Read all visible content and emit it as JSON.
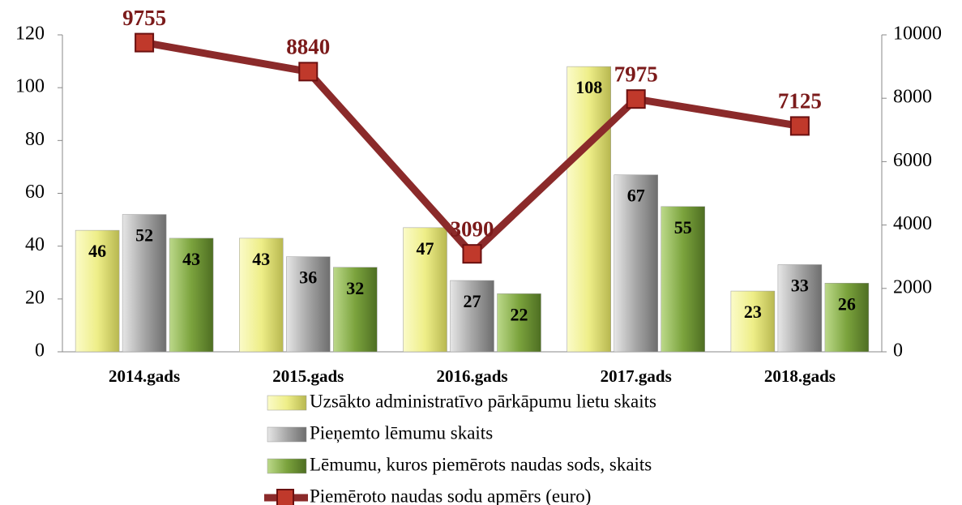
{
  "chart_data": {
    "type": "bar",
    "categories": [
      "2014.gads",
      "2015.gads",
      "2016.gads",
      "2017.gads",
      "2018.gads"
    ],
    "series": [
      {
        "name": "Uzsākto administratīvo pārkāpumu lietu skaits",
        "color": "#eeee88",
        "values": [
          46,
          43,
          47,
          108,
          23
        ]
      },
      {
        "name": "Pieņemto lēmumu skaits",
        "color": "#a6a6a6",
        "values": [
          52,
          36,
          27,
          67,
          33
        ]
      },
      {
        "name": "Lēmumu, kuros piemērots naudas sods, skaits",
        "color": "#7ba33d",
        "values": [
          43,
          32,
          22,
          55,
          26
        ]
      },
      {
        "name": "Piemēroto naudas sodu apmērs (euro)",
        "color": "#8b2a2a",
        "type": "line",
        "axis": "y2",
        "values": [
          9755,
          8840,
          3090,
          7975,
          7125
        ]
      }
    ],
    "ylim": [
      0,
      120
    ],
    "yticks": [
      0,
      20,
      40,
      60,
      80,
      100,
      120
    ],
    "y2lim": [
      0,
      10000
    ],
    "y2ticks": [
      0,
      2000,
      4000,
      6000,
      8000,
      10000
    ]
  }
}
